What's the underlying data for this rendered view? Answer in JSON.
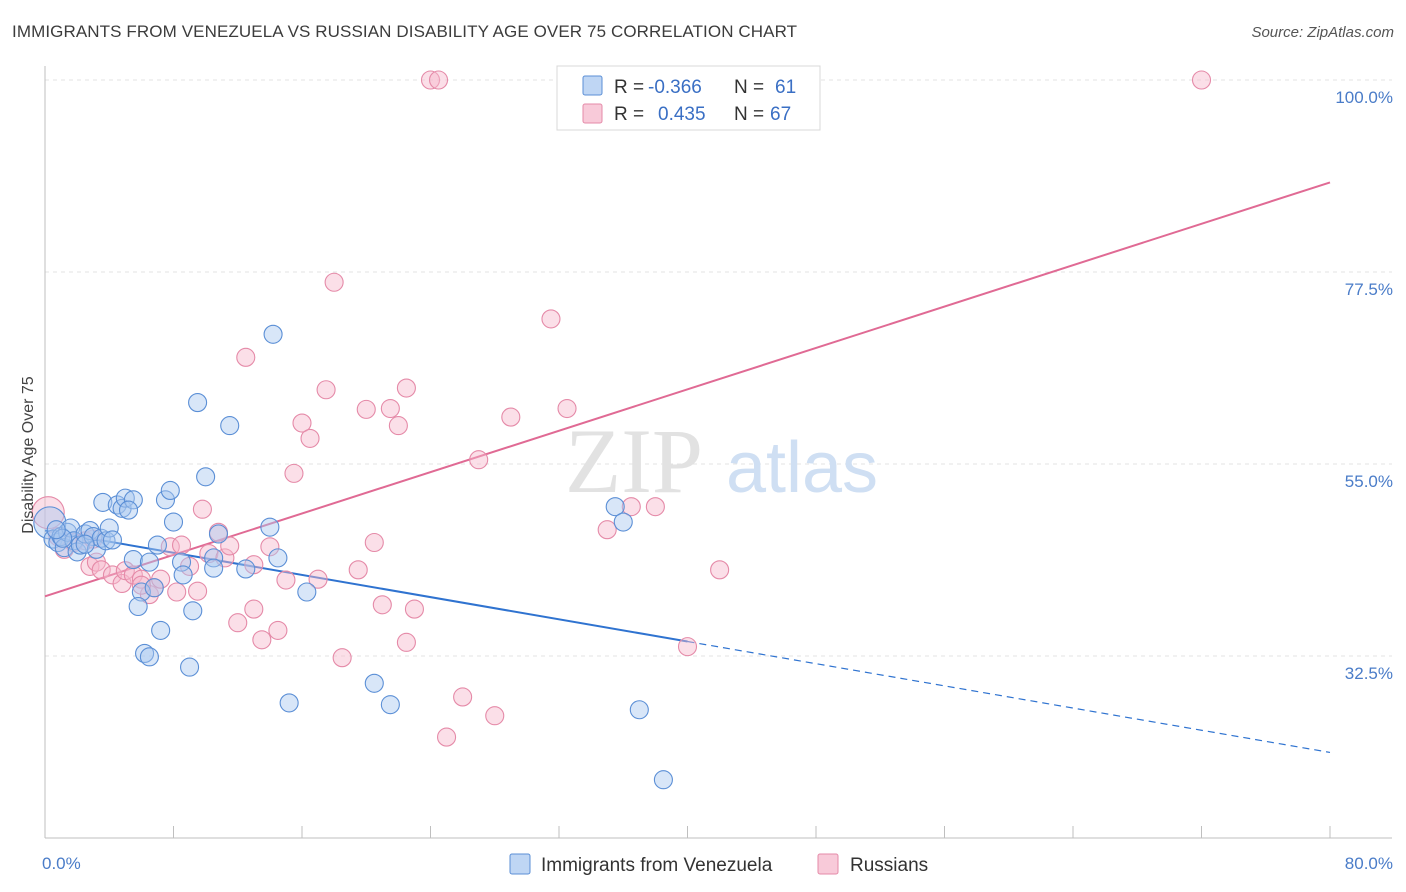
{
  "title": "IMMIGRANTS FROM VENEZUELA VS RUSSIAN DISABILITY AGE OVER 75 CORRELATION CHART",
  "source": "Source: ZipAtlas.com",
  "watermark": {
    "zip": "ZIP",
    "atlas": "atlas"
  },
  "colors": {
    "blue_fill": "#a9c8f0",
    "blue_stroke": "#5b8fd6",
    "blue_line": "#2f73d0",
    "pink_fill": "#f6b8cc",
    "pink_stroke": "#e58aa8",
    "pink_line": "#e06a94",
    "tick_text": "#4a7cc8",
    "grid": "#e3e3e3"
  },
  "legend_top": [
    {
      "r_label": "R =",
      "r_value": "-0.366",
      "n_label": "N =",
      "n_value": "61"
    },
    {
      "r_label": "R =",
      "r_value": "0.435",
      "n_label": "N =",
      "n_value": "67"
    }
  ],
  "legend_bottom": [
    {
      "label": "Immigrants from Venezuela"
    },
    {
      "label": "Russians"
    }
  ],
  "chart_data": {
    "type": "scatter",
    "title": "IMMIGRANTS FROM VENEZUELA VS RUSSIAN DISABILITY AGE OVER 75 CORRELATION CHART",
    "xlabel": "",
    "ylabel": "Disability Age Over 75",
    "xlim": [
      0,
      80
    ],
    "ylim": [
      10,
      105
    ],
    "x_tick_labels": [
      "0.0%",
      "80.0%"
    ],
    "y_ticks": [
      32.5,
      55.0,
      77.5,
      100.0
    ],
    "y_tick_labels": [
      "32.5%",
      "55.0%",
      "77.5%",
      "100.0%"
    ],
    "grid": true,
    "legend_position": "top-center",
    "series": [
      {
        "name": "Immigrants from Venezuela",
        "r": -0.366,
        "n": 61,
        "trend": {
          "x0": 0,
          "y0": 47.2,
          "x1": 40,
          "y1": 34.2,
          "dashed_to_x": 80,
          "dashed_to_y": 21.2
        },
        "points": [
          [
            0.3,
            48.1
          ],
          [
            0.5,
            46.2
          ],
          [
            0.8,
            45.8
          ],
          [
            1.0,
            46.5
          ],
          [
            1.2,
            45.2
          ],
          [
            1.4,
            47.0
          ],
          [
            1.6,
            47.5
          ],
          [
            1.8,
            46.0
          ],
          [
            2.0,
            44.7
          ],
          [
            2.2,
            45.5
          ],
          [
            2.5,
            46.8
          ],
          [
            2.8,
            47.2
          ],
          [
            3.0,
            46.5
          ],
          [
            3.2,
            45.0
          ],
          [
            3.5,
            46.3
          ],
          [
            3.8,
            46.0
          ],
          [
            4.0,
            47.5
          ],
          [
            3.6,
            50.5
          ],
          [
            4.5,
            50.2
          ],
          [
            4.8,
            49.8
          ],
          [
            5.0,
            51.0
          ],
          [
            5.5,
            50.8
          ],
          [
            5.2,
            49.6
          ],
          [
            5.5,
            43.8
          ],
          [
            6.0,
            40.0
          ],
          [
            5.8,
            38.3
          ],
          [
            6.2,
            32.8
          ],
          [
            6.5,
            43.5
          ],
          [
            6.8,
            40.5
          ],
          [
            6.5,
            32.4
          ],
          [
            7.0,
            45.5
          ],
          [
            7.2,
            35.5
          ],
          [
            7.5,
            50.8
          ],
          [
            7.8,
            51.9
          ],
          [
            8.0,
            48.2
          ],
          [
            8.5,
            43.5
          ],
          [
            8.6,
            42.0
          ],
          [
            9.0,
            31.2
          ],
          [
            9.2,
            37.8
          ],
          [
            9.5,
            62.2
          ],
          [
            10.0,
            53.5
          ],
          [
            10.5,
            44.0
          ],
          [
            10.5,
            42.8
          ],
          [
            10.8,
            46.8
          ],
          [
            11.5,
            59.5
          ],
          [
            12.5,
            42.7
          ],
          [
            14.2,
            70.2
          ],
          [
            14.0,
            47.6
          ],
          [
            14.5,
            44.0
          ],
          [
            15.2,
            27.0
          ],
          [
            16.3,
            40.0
          ],
          [
            20.5,
            29.3
          ],
          [
            21.5,
            26.8
          ],
          [
            35.5,
            50.0
          ],
          [
            36.0,
            48.2
          ],
          [
            37.0,
            26.2
          ],
          [
            38.5,
            18.0
          ],
          [
            2.5,
            45.6
          ],
          [
            4.2,
            46.1
          ],
          [
            1.1,
            46.3
          ],
          [
            0.7,
            47.3
          ]
        ]
      },
      {
        "name": "Russians",
        "r": 0.435,
        "n": 67,
        "trend": {
          "x0": 0,
          "y0": 39.5,
          "x1": 80,
          "y1": 88.0
        },
        "points": [
          [
            0.2,
            49.3
          ],
          [
            0.8,
            46.5
          ],
          [
            1.2,
            45.0
          ],
          [
            1.8,
            45.8
          ],
          [
            2.5,
            46.0
          ],
          [
            2.8,
            43.0
          ],
          [
            3.2,
            43.5
          ],
          [
            3.5,
            42.6
          ],
          [
            4.2,
            42.0
          ],
          [
            4.8,
            41.0
          ],
          [
            5.0,
            42.5
          ],
          [
            5.5,
            42.0
          ],
          [
            6.0,
            41.5
          ],
          [
            6.5,
            39.7
          ],
          [
            6.8,
            40.5
          ],
          [
            7.2,
            41.5
          ],
          [
            7.8,
            45.3
          ],
          [
            8.2,
            40.0
          ],
          [
            8.5,
            45.5
          ],
          [
            9.0,
            43.0
          ],
          [
            9.5,
            40.1
          ],
          [
            9.8,
            49.7
          ],
          [
            10.2,
            44.5
          ],
          [
            10.8,
            47.0
          ],
          [
            11.2,
            44.0
          ],
          [
            11.5,
            45.4
          ],
          [
            12.0,
            36.4
          ],
          [
            12.5,
            67.5
          ],
          [
            13.0,
            38.0
          ],
          [
            13.5,
            34.4
          ],
          [
            14.0,
            45.3
          ],
          [
            14.5,
            35.5
          ],
          [
            15.0,
            41.4
          ],
          [
            15.5,
            53.9
          ],
          [
            16.0,
            59.8
          ],
          [
            16.5,
            58.0
          ],
          [
            17.0,
            41.5
          ],
          [
            17.5,
            63.7
          ],
          [
            18.0,
            76.3
          ],
          [
            18.5,
            32.3
          ],
          [
            19.5,
            42.6
          ],
          [
            20.0,
            61.4
          ],
          [
            20.5,
            45.8
          ],
          [
            21.0,
            38.5
          ],
          [
            21.5,
            61.5
          ],
          [
            22.0,
            59.5
          ],
          [
            22.5,
            63.9
          ],
          [
            22.5,
            34.1
          ],
          [
            23.0,
            38.0
          ],
          [
            24.0,
            100.0
          ],
          [
            24.5,
            100.0
          ],
          [
            25.0,
            23.0
          ],
          [
            26.0,
            27.7
          ],
          [
            27.0,
            55.5
          ],
          [
            28.0,
            25.5
          ],
          [
            29.0,
            60.5
          ],
          [
            31.5,
            72.0
          ],
          [
            32.5,
            61.5
          ],
          [
            35.0,
            47.3
          ],
          [
            36.5,
            50.0
          ],
          [
            38.0,
            50.0
          ],
          [
            40.0,
            33.6
          ],
          [
            42.0,
            42.6
          ],
          [
            72.0,
            100.0
          ],
          [
            3.0,
            46.2
          ],
          [
            6.0,
            40.8
          ],
          [
            13.0,
            43.2
          ]
        ]
      }
    ]
  }
}
